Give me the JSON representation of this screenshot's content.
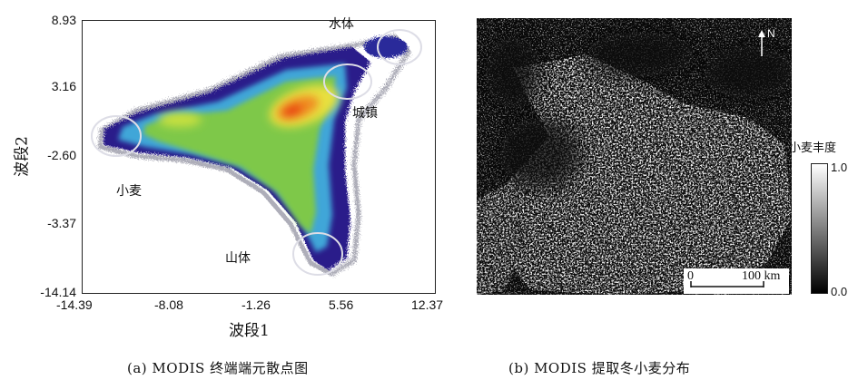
{
  "scatter": {
    "y_ticks": [
      "8.93",
      "3.16",
      "-2.60",
      "-3.37",
      "-14.14"
    ],
    "x_ticks": [
      "-14.39",
      "-8.08",
      "-1.26",
      "5.56",
      "12.37"
    ],
    "xlabel": "波段1",
    "ylabel": "波段2",
    "clusters": {
      "water": "水体",
      "town": "城镇",
      "wheat": "小麦",
      "mountain": "山体"
    }
  },
  "map": {
    "north": "N",
    "scale_start": "0",
    "scale_end": "100 km",
    "colorbar_title": "小麦丰度",
    "colorbar_max": "1.0",
    "colorbar_min": "0.0"
  },
  "captions": {
    "a": "(a) MODIS 终端端元散点图",
    "b": "(b) MODIS 提取冬小麦分布"
  },
  "colors": {
    "density_low": "#2a1a8a",
    "density_mid": "#7ec84a",
    "density_high": "#e83a10",
    "map_background": "#0a0a0a"
  }
}
